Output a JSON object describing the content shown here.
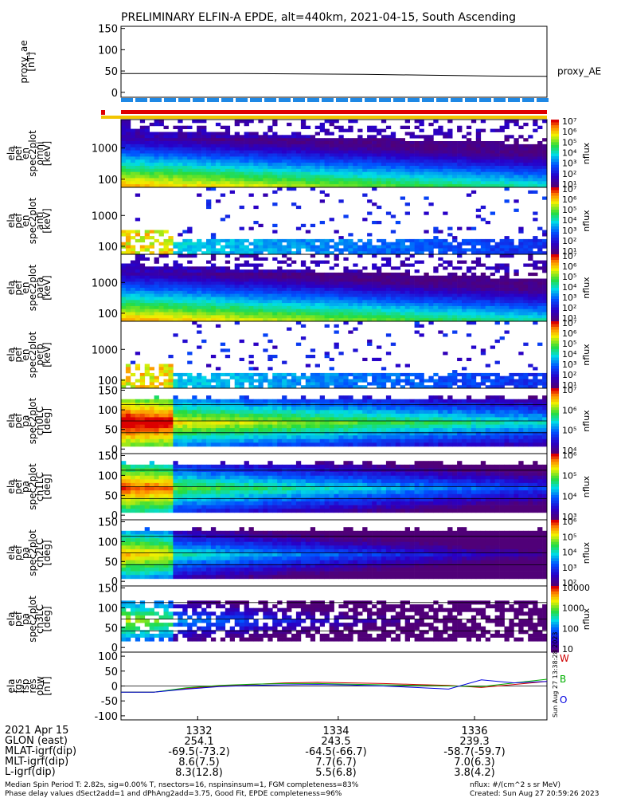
{
  "title": "PRELIMINARY ELFIN-A EPDE, alt=440km, 2021-04-15, South Ascending",
  "panels": [
    {
      "ylabel": [
        "proxy_ae",
        "[nT]"
      ],
      "ticks": [
        "0",
        "50",
        "100",
        "150"
      ],
      "side_label": "proxy_AE"
    },
    {
      "ylabel": [
        "ela",
        "pef",
        "en",
        "spec2plot",
        "omni",
        "[keV]"
      ],
      "ticks": [
        "100",
        "1000"
      ],
      "cbar_ticks": [
        "10¹",
        "10²",
        "10³",
        "10⁴",
        "10⁵",
        "10⁶",
        "10⁷"
      ],
      "cbar_label": "nflux"
    },
    {
      "ylabel": [
        "ela",
        "pef",
        "en",
        "spec2plot",
        "anti",
        "[keV]"
      ],
      "ticks": [
        "100",
        "1000"
      ],
      "cbar_ticks": [
        "10¹",
        "10²",
        "10³",
        "10⁴",
        "10⁵",
        "10⁶",
        "10⁷"
      ],
      "cbar_label": "nflux"
    },
    {
      "ylabel": [
        "ela",
        "pef",
        "en",
        "spec2plot",
        "para",
        "[keV]"
      ],
      "ticks": [
        "100",
        "1000"
      ],
      "cbar_ticks": [
        "10¹",
        "10²",
        "10³",
        "10⁴",
        "10⁵",
        "10⁶",
        "10⁷"
      ],
      "cbar_label": "nflux"
    },
    {
      "ylabel": [
        "ela",
        "pef",
        "en",
        "spec2plot",
        "perp",
        "[keV]"
      ],
      "ticks": [
        "100",
        "1000"
      ],
      "cbar_ticks": [
        "10¹",
        "10²",
        "10³",
        "10⁴",
        "10⁵",
        "10⁶",
        "10⁷"
      ],
      "cbar_label": "nflux"
    },
    {
      "ylabel": [
        "ela",
        "pef",
        "pa",
        "spec2plot",
        "ch0LC",
        "[deg]"
      ],
      "ticks": [
        "0",
        "50",
        "100",
        "150"
      ],
      "cbar_ticks": [
        "10⁴",
        "10⁵",
        "10⁶",
        "10⁷"
      ],
      "cbar_label": "nflux"
    },
    {
      "ylabel": [
        "ela",
        "pef",
        "pa",
        "spec2plot",
        "ch1LC",
        "[deg]"
      ],
      "ticks": [
        "0",
        "50",
        "100",
        "150"
      ],
      "cbar_ticks": [
        "10³",
        "10⁴",
        "10⁵",
        "10⁶"
      ],
      "cbar_label": "nflux"
    },
    {
      "ylabel": [
        "ela",
        "pef",
        "pa",
        "spec2plot",
        "ch2LC",
        "[deg]"
      ],
      "ticks": [
        "0",
        "50",
        "100",
        "150"
      ],
      "cbar_ticks": [
        "10²",
        "10³",
        "10⁴",
        "10⁵",
        "10⁶"
      ],
      "cbar_label": "nflux"
    },
    {
      "ylabel": [
        "ela",
        "pef",
        "pa",
        "spec2plot",
        "ch3LC",
        "[deg]"
      ],
      "ticks": [
        "0",
        "50",
        "100",
        "150"
      ],
      "cbar_ticks": [
        "10",
        "100",
        "1000",
        "10000"
      ],
      "cbar_label": "nflux"
    },
    {
      "ylabel": [
        "ela",
        "fgs",
        "fsp",
        "res",
        "obw",
        "[nT]"
      ],
      "ticks": [
        "-100",
        "-50",
        "0",
        "50",
        "100"
      ],
      "legend": [
        "W",
        "B",
        "O"
      ]
    }
  ],
  "colors": {
    "w": "#d00000",
    "b": "#00b000",
    "o": "#0000e0",
    "axis": "#000000"
  },
  "created_vertical": "Sun Aug 27 13:38:28 2023",
  "footer": {
    "date_label": "2021 Apr 15",
    "rows": [
      {
        "label": "GLON (east)",
        "values": [
          "254.1",
          "243.5",
          "239.3"
        ]
      },
      {
        "label": "MLAT-igrf(dip)",
        "values": [
          "-69.5(-73.2)",
          "-64.5(-66.7)",
          "-58.7(-59.7)"
        ]
      },
      {
        "label": "MLT-igrf(dip)",
        "values": [
          "8.6(7.5)",
          "7.7(6.7)",
          "7.0(6.3)"
        ]
      },
      {
        "label": "L-igrf(dip)",
        "values": [
          "8.3(12.8)",
          "5.5(6.8)",
          "3.8(4.2)"
        ]
      }
    ],
    "times": [
      "1332",
      "1334",
      "1336"
    ],
    "note1": "Median Spin Period T: 2.82s, sig=0.00% T, nsectors=16, nspinsinsum=1, FGM completeness=83%",
    "note2": "Phase delay values dSect2add=1 and dPhAng2add=3.75, Good Fit, EPDE completeness=96%",
    "units": "nflux: #/(cm^2 s sr MeV)",
    "created": "Created: Sun Aug 27 20:59:26 2023"
  },
  "chart_data": [
    {
      "type": "line",
      "title": "PRELIMINARY ELFIN-A EPDE, alt=440km, 2021-04-15, South Ascending",
      "ylabel": "proxy_ae [nT]",
      "ylim": [
        -10,
        160
      ],
      "series": [
        {
          "name": "proxy_AE",
          "x": [
            "1330.0",
            "1331.0",
            "1332.0",
            "1333.0",
            "1334.0",
            "1335.0",
            "1336.0",
            "1337.0"
          ],
          "values": [
            47,
            47,
            47,
            46,
            45,
            43,
            41,
            40
          ]
        }
      ]
    },
    {
      "type": "heatmap",
      "ylabel": "[keV]",
      "yscale": "log",
      "ylim": [
        60,
        7000
      ],
      "colorbar": "nflux 10^1-10^7"
    },
    {
      "type": "heatmap",
      "ylabel": "[keV]",
      "yscale": "log",
      "ylim": [
        60,
        7000
      ],
      "colorbar": "nflux 10^1-10^7"
    },
    {
      "type": "heatmap",
      "ylabel": "[keV]",
      "yscale": "log",
      "ylim": [
        60,
        7000
      ],
      "colorbar": "nflux 10^1-10^7"
    },
    {
      "type": "heatmap",
      "ylabel": "[keV]",
      "yscale": "log",
      "ylim": [
        60,
        7000
      ],
      "colorbar": "nflux 10^1-10^7"
    },
    {
      "type": "heatmap",
      "ylabel": "[deg]",
      "ylim": [
        0,
        180
      ],
      "colorbar": "nflux 10^4-10^7"
    },
    {
      "type": "heatmap",
      "ylabel": "[deg]",
      "ylim": [
        0,
        180
      ],
      "colorbar": "nflux 10^3-10^6"
    },
    {
      "type": "heatmap",
      "ylabel": "[deg]",
      "ylim": [
        0,
        180
      ],
      "colorbar": "nflux 10^2-10^6"
    },
    {
      "type": "heatmap",
      "ylabel": "[deg]",
      "ylim": [
        0,
        180
      ],
      "colorbar": "nflux 10-10000"
    },
    {
      "type": "line",
      "ylabel": "[nT]",
      "ylim": [
        -110,
        110
      ],
      "x": [
        "1330.5",
        "1331.0",
        "1331.5",
        "1332.0",
        "1332.5",
        "1333.0",
        "1333.5",
        "1334.0",
        "1334.5",
        "1335.0",
        "1335.5",
        "1336.0",
        "1336.5",
        "1337.0"
      ],
      "series": [
        {
          "name": "W",
          "values": [
            -20,
            -20,
            -8,
            0,
            5,
            10,
            12,
            10,
            8,
            5,
            2,
            -5,
            5,
            15
          ]
        },
        {
          "name": "B",
          "values": [
            -20,
            -20,
            -6,
            2,
            6,
            8,
            8,
            6,
            4,
            2,
            0,
            -2,
            10,
            22
          ]
        },
        {
          "name": "O",
          "values": [
            -20,
            -20,
            -10,
            -2,
            2,
            4,
            5,
            3,
            0,
            -5,
            -10,
            20,
            10,
            15
          ]
        }
      ]
    }
  ]
}
